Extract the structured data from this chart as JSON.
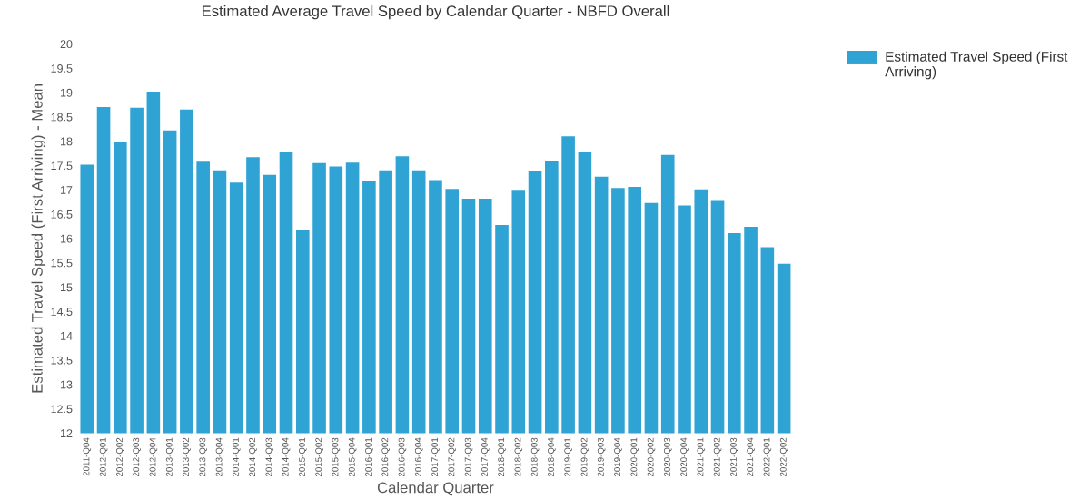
{
  "chart_data": {
    "type": "bar",
    "title": "Estimated Average Travel Speed by Calendar Quarter - NBFD Overall",
    "xlabel": "Calendar Quarter",
    "ylabel": "Estimated Travel Speed (First Arriving) - Mean",
    "categories": [
      "2011-Q04",
      "2012-Q01",
      "2012-Q02",
      "2012-Q03",
      "2012-Q04",
      "2013-Q01",
      "2013-Q02",
      "2013-Q03",
      "2013-Q04",
      "2014-Q01",
      "2014-Q02",
      "2014-Q03",
      "2014-Q04",
      "2015-Q01",
      "2015-Q02",
      "2015-Q03",
      "2015-Q04",
      "2016-Q01",
      "2016-Q02",
      "2016-Q03",
      "2016-Q04",
      "2017-Q01",
      "2017-Q02",
      "2017-Q03",
      "2017-Q04",
      "2018-Q01",
      "2018-Q02",
      "2018-Q03",
      "2018-Q04",
      "2019-Q01",
      "2019-Q02",
      "2019-Q03",
      "2019-Q04",
      "2020-Q01",
      "2020-Q02",
      "2020-Q03",
      "2020-Q04",
      "2021-Q01",
      "2021-Q02",
      "2021-Q03",
      "2021-Q04",
      "2022-Q01",
      "2022-Q02"
    ],
    "series": [
      {
        "name": "Estimated Travel Speed (First Arriving)",
        "color": "#2ea3d4",
        "values": [
          17.52,
          18.7,
          17.98,
          18.69,
          19.02,
          18.22,
          18.65,
          17.58,
          17.4,
          17.15,
          17.67,
          17.31,
          17.77,
          16.18,
          17.55,
          17.48,
          17.56,
          17.19,
          17.4,
          17.69,
          17.4,
          17.2,
          17.02,
          16.82,
          16.82,
          16.28,
          17.0,
          17.38,
          17.59,
          18.1,
          17.77,
          17.27,
          17.04,
          17.06,
          16.73,
          17.72,
          16.68,
          17.01,
          16.79,
          16.11,
          16.24,
          15.82,
          15.48
        ]
      }
    ],
    "ylim": [
      12,
      20
    ],
    "yticks": [
      12,
      12.5,
      13,
      13.5,
      14,
      14.5,
      15,
      15.5,
      16,
      16.5,
      17,
      17.5,
      18,
      18.5,
      19,
      19.5,
      20
    ],
    "grid": false,
    "legend": "top right"
  }
}
